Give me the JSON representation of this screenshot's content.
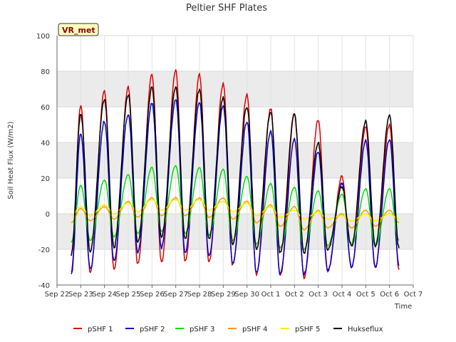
{
  "chart_data": {
    "type": "line",
    "title": "Peltier SHF Plates",
    "xlabel": "Time",
    "ylabel": "Soil Heat Flux (W/m2)",
    "ylim": [
      -40,
      100
    ],
    "xlim": [
      0,
      15
    ],
    "yticks": [
      -40,
      -20,
      0,
      20,
      40,
      60,
      80,
      100
    ],
    "x_tick_labels": [
      "Sep 22",
      "Sep 23",
      "Sep 24",
      "Sep 25",
      "Sep 26",
      "Sep 27",
      "Sep 28",
      "Sep 29",
      "Sep 30",
      "Oct 1",
      "Oct 2",
      "Oct 3",
      "Oct 4",
      "Oct 5",
      "Oct 6",
      "Oct 7"
    ],
    "badge": "VR_met",
    "grid": true,
    "band_color": "#ebebeb",
    "legend_position": "bottom",
    "x_days": [
      0.6,
      1,
      1.4,
      2,
      2.4,
      3,
      3.4,
      4,
      4.4,
      5,
      5.4,
      6,
      6.4,
      7,
      7.4,
      8,
      8.4,
      9,
      9.4,
      10,
      10.4,
      11,
      11.4,
      12,
      12.4,
      13,
      13.4,
      14,
      14.4
    ],
    "series": [
      {
        "name": "pSHF 1",
        "color": "#dd0000",
        "values": [
          -33,
          61,
          -33,
          69,
          -31,
          71,
          -28,
          78,
          -27,
          81,
          -27,
          78,
          -27,
          73,
          -29,
          67,
          -34,
          59,
          -35,
          56,
          -36,
          53,
          -32,
          21,
          -30,
          49,
          -30,
          50,
          -31
        ]
      },
      {
        "name": "pSHF 2",
        "color": "#0000cc",
        "values": [
          -34,
          45,
          -31,
          52,
          -26,
          56,
          -22,
          62,
          -19,
          64,
          -22,
          63,
          -24,
          61,
          -28,
          52,
          -33,
          46,
          -34,
          42,
          -34,
          35,
          -32,
          17,
          -30,
          41,
          -30,
          42,
          -29
        ]
      },
      {
        "name": "pSHF 3",
        "color": "#00dd00",
        "values": [
          -16,
          16,
          -15,
          19,
          -13,
          22,
          -11,
          26,
          -10,
          27,
          -11,
          26,
          -12,
          25,
          -15,
          21,
          -17,
          17,
          -19,
          15,
          -20,
          13,
          -18,
          11,
          -18,
          14,
          -18,
          14,
          -15
        ]
      },
      {
        "name": "pSHF 4",
        "color": "#ff9900",
        "values": [
          -5,
          3,
          -4,
          4,
          -3,
          7,
          -2,
          9,
          -1,
          9,
          -1,
          9,
          -2,
          9,
          -3,
          7,
          -5,
          5,
          -7,
          4,
          -9,
          2,
          -8,
          0,
          -8,
          2,
          -7,
          2,
          -5
        ]
      },
      {
        "name": "pSHF 5",
        "color": "#ffee00",
        "values": [
          -1,
          4,
          -1,
          5,
          0,
          6,
          1,
          8,
          2,
          8,
          2,
          8,
          2,
          7,
          1,
          6,
          -1,
          4,
          -2,
          2,
          -3,
          1,
          -3,
          -1,
          -4,
          0,
          -4,
          0,
          -3
        ]
      },
      {
        "name": "Hukseflux",
        "color": "#000000",
        "values": [
          -23,
          56,
          -21,
          64,
          -19,
          67,
          -16,
          71,
          -13,
          71,
          -14,
          70,
          -14,
          65,
          -17,
          60,
          -20,
          57,
          -22,
          56,
          -22,
          40,
          -20,
          15,
          -18,
          52,
          -18,
          55,
          -19
        ]
      }
    ]
  }
}
